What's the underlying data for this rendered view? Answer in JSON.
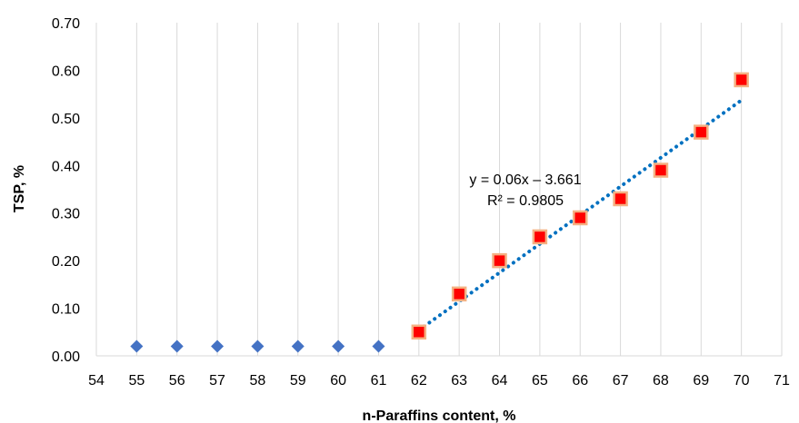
{
  "chart_data": {
    "type": "scatter",
    "title": "",
    "xlabel": "n-Paraffins content, %",
    "ylabel": "TSP, %",
    "xlim": [
      54,
      71
    ],
    "ylim": [
      0.0,
      0.7
    ],
    "x_ticks": [
      "54",
      "55",
      "56",
      "57",
      "58",
      "59",
      "60",
      "61",
      "62",
      "63",
      "64",
      "65",
      "66",
      "67",
      "68",
      "69",
      "70",
      "71"
    ],
    "y_ticks": [
      "0.00",
      "0.10",
      "0.20",
      "0.30",
      "0.40",
      "0.50",
      "0.60",
      "0.70"
    ],
    "grid": {
      "vertical": true,
      "horizontal": false
    },
    "legend": "none",
    "series": [
      {
        "marker": "diamond",
        "color": "#4472C4",
        "points": [
          [
            55,
            0.02
          ],
          [
            56,
            0.02
          ],
          [
            57,
            0.02
          ],
          [
            58,
            0.02
          ],
          [
            59,
            0.02
          ],
          [
            60,
            0.02
          ],
          [
            61,
            0.02
          ]
        ]
      },
      {
        "marker": "square",
        "color": "#FF0000",
        "edge_color": "#F4B183",
        "points": [
          [
            62,
            0.05
          ],
          [
            63,
            0.13
          ],
          [
            64,
            0.2
          ],
          [
            65,
            0.25
          ],
          [
            66,
            0.29
          ],
          [
            67,
            0.33
          ],
          [
            68,
            0.39
          ],
          [
            69,
            0.47
          ],
          [
            70,
            0.58
          ]
        ]
      }
    ],
    "trendline": {
      "style": "dotted",
      "color": "#0070C0",
      "x_range": [
        62,
        70
      ],
      "y_range": [
        0.054,
        0.537
      ]
    },
    "annotations": [
      "y = 0.06x – 3.661",
      "R² = 0.9805"
    ]
  }
}
